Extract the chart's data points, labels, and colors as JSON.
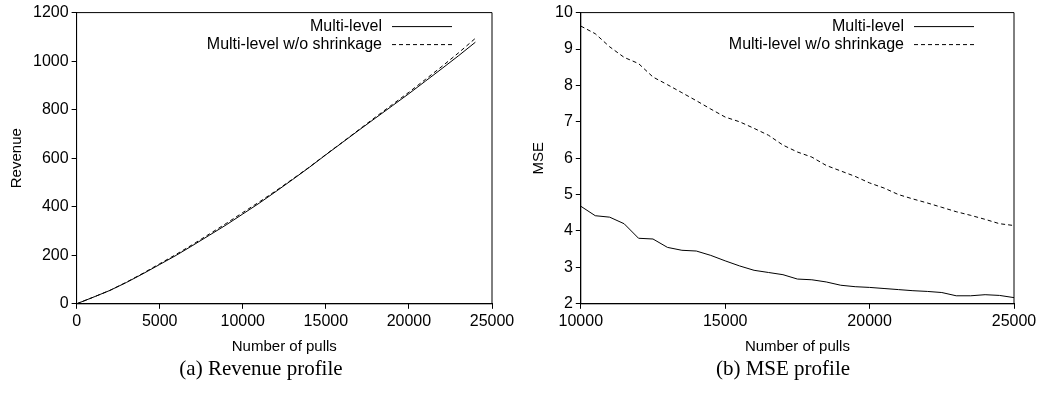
{
  "chart_data": [
    {
      "type": "line",
      "title": "(a) Revenue profile",
      "xlabel": "Number of pulls",
      "ylabel": "Revenue",
      "x": [
        0,
        1000,
        2000,
        3000,
        4000,
        5000,
        6000,
        7000,
        8000,
        9000,
        10000,
        11000,
        12000,
        13000,
        14000,
        15000,
        16000,
        17000,
        18000,
        19000,
        20000,
        21000,
        22000,
        23000,
        24000
      ],
      "series": [
        {
          "name": "Multi-level",
          "color": "#000000",
          "line_style": "solid",
          "values": [
            0,
            27,
            55,
            88,
            124,
            162,
            200,
            241,
            283,
            325,
            370,
            415,
            463,
            512,
            562,
            614,
            665,
            716,
            766,
            816,
            866,
            918,
            970,
            1023,
            1078
          ]
        },
        {
          "name": "Multi-level w/o shrinkage",
          "color": "#000000",
          "line_style": "dashed",
          "values": [
            0,
            27,
            55,
            89,
            126,
            165,
            204,
            245,
            288,
            331,
            376,
            420,
            466,
            514,
            563,
            615,
            666,
            718,
            770,
            821,
            872,
            925,
            979,
            1035,
            1094
          ]
        }
      ],
      "xlim": [
        0,
        25000
      ],
      "xticks": [
        0,
        5000,
        10000,
        15000,
        20000,
        25000
      ],
      "ylim": [
        0,
        1200
      ],
      "yticks": [
        0,
        200,
        400,
        600,
        800,
        1000,
        1200
      ],
      "grid": false,
      "legend": "top right",
      "marker": "none"
    },
    {
      "type": "line",
      "title": "(b) MSE profile",
      "xlabel": "Number of pulls",
      "ylabel": "MSE",
      "x": [
        10000,
        10500,
        11000,
        11500,
        12000,
        12500,
        13000,
        13500,
        14000,
        14500,
        15000,
        15500,
        16000,
        16500,
        17000,
        17500,
        18000,
        18500,
        19000,
        19500,
        20000,
        20500,
        21000,
        21500,
        22000,
        22500,
        23000,
        23500,
        24000,
        24500,
        25000
      ],
      "series": [
        {
          "name": "Multi-level",
          "color": "#000000",
          "line_style": "solid",
          "values": [
            4.68,
            4.42,
            4.38,
            4.2,
            3.8,
            3.78,
            3.55,
            3.47,
            3.45,
            3.33,
            3.18,
            3.04,
            2.92,
            2.86,
            2.8,
            2.68,
            2.66,
            2.6,
            2.51,
            2.47,
            2.45,
            2.42,
            2.39,
            2.36,
            2.34,
            2.31,
            2.22,
            2.22,
            2.25,
            2.23,
            2.17
          ]
        },
        {
          "name": "Multi-level w/o shrinkage",
          "color": "#000000",
          "line_style": "dashed",
          "values": [
            9.63,
            9.42,
            9.06,
            8.77,
            8.6,
            8.23,
            8.02,
            7.8,
            7.58,
            7.35,
            7.13,
            7.0,
            6.82,
            6.63,
            6.36,
            6.17,
            6.03,
            5.8,
            5.65,
            5.5,
            5.32,
            5.18,
            5.0,
            4.88,
            4.77,
            4.65,
            4.53,
            4.43,
            4.32,
            4.2,
            4.15
          ]
        }
      ],
      "xlim": [
        10000,
        25000
      ],
      "xticks": [
        10000,
        15000,
        20000,
        25000
      ],
      "ylim": [
        2,
        10
      ],
      "yticks": [
        2,
        3,
        4,
        5,
        6,
        7,
        8,
        9,
        10
      ],
      "grid": false,
      "legend": "top right",
      "marker": "none"
    }
  ]
}
